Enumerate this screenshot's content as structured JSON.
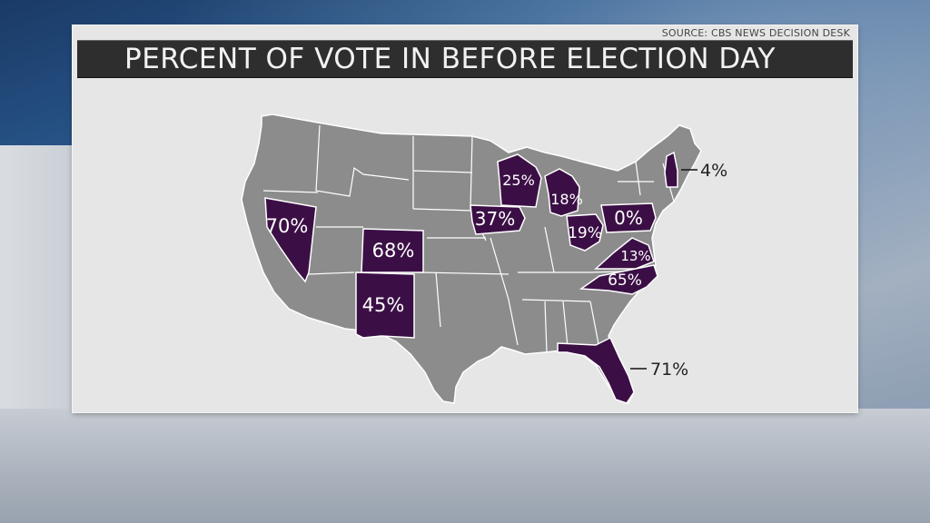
{
  "source": "SOURCE: CBS NEWS DECISION DESK",
  "title": "PERCENT OF VOTE IN BEFORE ELECTION DAY",
  "colors": {
    "highlight_state": "#3b0f45",
    "other_state": "#8c8c8c",
    "border": "#ffffff",
    "panel": "#e6e6e6",
    "title_bar": "#2e2e2e"
  },
  "states": [
    {
      "state": "Nevada",
      "label": "70%"
    },
    {
      "state": "Colorado",
      "label": "68%"
    },
    {
      "state": "New Mexico",
      "label": "45%"
    },
    {
      "state": "Iowa",
      "label": "37%"
    },
    {
      "state": "Wisconsin",
      "label": "25%"
    },
    {
      "state": "Michigan",
      "label": "18%"
    },
    {
      "state": "Ohio",
      "label": "19%"
    },
    {
      "state": "Pennsylvania",
      "label": "0%"
    },
    {
      "state": "Virginia",
      "label": "13%"
    },
    {
      "state": "North Carolina",
      "label": "65%"
    },
    {
      "state": "New Hampshire",
      "label": "4%"
    },
    {
      "state": "Florida",
      "label": "71%"
    }
  ]
}
